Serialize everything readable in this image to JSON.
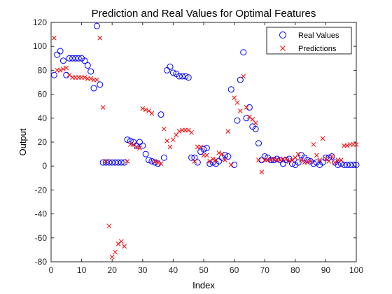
{
  "chart_data": {
    "type": "scatter",
    "title": "Prediction and Real Values for Optimal Features",
    "xlabel": "Index",
    "ylabel": "Output",
    "xlim": [
      0,
      100
    ],
    "ylim": [
      -80,
      120
    ],
    "xticks": [
      0,
      10,
      20,
      30,
      40,
      50,
      60,
      70,
      80,
      90,
      100
    ],
    "yticks": [
      -80,
      -60,
      -40,
      -20,
      0,
      20,
      40,
      60,
      80,
      100,
      120
    ],
    "grid": false,
    "legend_position": "top-right",
    "series": [
      {
        "name": "Real Values",
        "marker": "circle",
        "color": "#0000ff",
        "x": [
          1,
          2,
          3,
          4,
          5,
          6,
          7,
          8,
          9,
          10,
          11,
          12,
          13,
          14,
          15,
          16,
          17,
          18,
          19,
          20,
          21,
          22,
          23,
          24,
          25,
          26,
          27,
          28,
          29,
          30,
          31,
          32,
          33,
          34,
          35,
          36,
          37,
          38,
          39,
          40,
          41,
          42,
          43,
          44,
          45,
          46,
          47,
          48,
          49,
          50,
          51,
          52,
          53,
          54,
          55,
          56,
          57,
          58,
          59,
          60,
          61,
          62,
          63,
          64,
          65,
          66,
          67,
          68,
          69,
          70,
          71,
          72,
          73,
          74,
          75,
          76,
          77,
          78,
          79,
          80,
          81,
          82,
          83,
          84,
          85,
          86,
          87,
          88,
          89,
          90,
          91,
          92,
          93,
          94,
          95,
          96,
          97,
          98,
          99,
          100
        ],
        "y": [
          76,
          93,
          96,
          88,
          76,
          90,
          90,
          90,
          90,
          90,
          88,
          84,
          79,
          65,
          117,
          68,
          3,
          3,
          3,
          3,
          3,
          3,
          3,
          3,
          22,
          21,
          20,
          17,
          20,
          17,
          10,
          5,
          4,
          3,
          2,
          43,
          7,
          80,
          83,
          78,
          77,
          75,
          75,
          75,
          74,
          7,
          7,
          3,
          12,
          14,
          15,
          2,
          3,
          2,
          4,
          7,
          9,
          8,
          64,
          1,
          38,
          72,
          95,
          40,
          49,
          33,
          31,
          19,
          5,
          8,
          7,
          5,
          5,
          6,
          5,
          2,
          5,
          6,
          2,
          1,
          3,
          9,
          7,
          5,
          4,
          2,
          3,
          1,
          3,
          7,
          7,
          8,
          3,
          1,
          2,
          1,
          1,
          1,
          1,
          1
        ]
      },
      {
        "name": "Predictions",
        "marker": "x",
        "color": "#ff0000",
        "x": [
          1,
          2,
          3,
          4,
          5,
          6,
          7,
          8,
          9,
          10,
          11,
          12,
          13,
          14,
          15,
          16,
          17,
          18,
          19,
          20,
          21,
          22,
          23,
          24,
          25,
          26,
          27,
          28,
          29,
          30,
          31,
          32,
          33,
          34,
          35,
          36,
          37,
          38,
          39,
          40,
          41,
          42,
          43,
          44,
          45,
          46,
          47,
          48,
          49,
          50,
          51,
          52,
          53,
          54,
          55,
          56,
          57,
          58,
          59,
          60,
          61,
          62,
          63,
          64,
          65,
          66,
          67,
          68,
          69,
          70,
          71,
          72,
          73,
          74,
          75,
          76,
          77,
          78,
          79,
          80,
          81,
          82,
          83,
          84,
          85,
          86,
          87,
          88,
          89,
          90,
          91,
          92,
          93,
          94,
          95,
          96,
          97,
          98,
          99,
          100
        ],
        "y": [
          107,
          80,
          80,
          81,
          82,
          76,
          74,
          74,
          74,
          74,
          74,
          73,
          73,
          72,
          72,
          107,
          49,
          4,
          -50,
          -76,
          -72,
          -65,
          -63,
          -67,
          4,
          18,
          18,
          16,
          15,
          48,
          47,
          46,
          44,
          4,
          3,
          2,
          31,
          21,
          16,
          22,
          26,
          29,
          30,
          30,
          30,
          28,
          4,
          16,
          16,
          9,
          9,
          4,
          6,
          5,
          11,
          10,
          5,
          29,
          1,
          57,
          53,
          46,
          75,
          49,
          41,
          39,
          36,
          5,
          -5,
          5,
          5,
          5,
          6,
          5,
          5,
          6,
          6,
          4,
          5,
          7,
          10,
          5,
          3,
          3,
          4,
          18,
          9,
          5,
          23,
          6,
          4,
          8,
          3,
          5,
          5,
          17,
          17,
          18,
          18,
          18
        ]
      }
    ]
  }
}
